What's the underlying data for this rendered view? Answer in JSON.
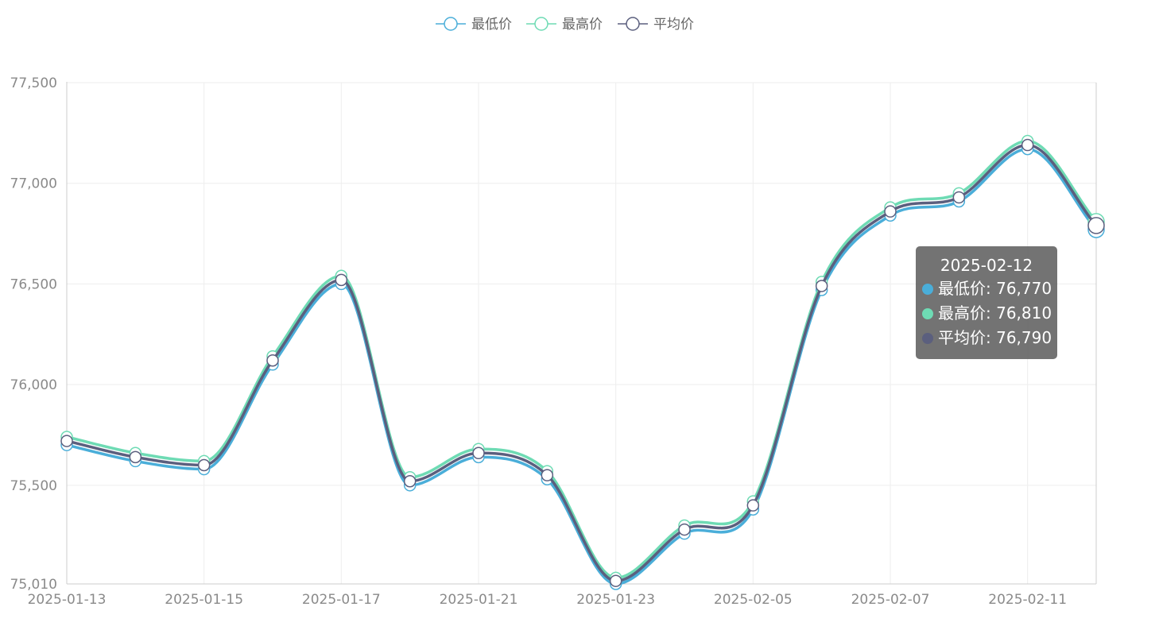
{
  "chart_data": {
    "type": "line",
    "smooth": true,
    "legend_position": "top-center",
    "grid": true,
    "x": [
      "2025-01-13",
      "2025-01-14",
      "2025-01-15",
      "2025-01-16",
      "2025-01-17",
      "2025-01-20",
      "2025-01-21",
      "2025-01-22",
      "2025-01-23",
      "2025-01-24",
      "2025-02-05",
      "2025-02-06",
      "2025-02-07",
      "2025-02-10",
      "2025-02-11",
      "2025-02-12"
    ],
    "x_tick_labels": [
      "2025-01-13",
      "2025-01-15",
      "2025-01-17",
      "2025-01-21",
      "2025-01-23",
      "2025-02-05",
      "2025-02-07",
      "2025-02-11"
    ],
    "x_tick_indices": [
      0,
      2,
      4,
      6,
      8,
      10,
      12,
      14
    ],
    "ylim": [
      75010,
      77500
    ],
    "y_ticks": [
      75010,
      75500,
      76000,
      76500,
      77000,
      77500
    ],
    "y_tick_labels": [
      "75,010",
      "75,500",
      "76,000",
      "76,500",
      "77,000",
      "77,500"
    ],
    "series": [
      {
        "name": "最低价",
        "color": "#4aaed9",
        "values": [
          75700,
          75620,
          75580,
          76100,
          76500,
          75500,
          75640,
          75530,
          75010,
          75260,
          75380,
          76470,
          76840,
          76910,
          77170,
          76770
        ]
      },
      {
        "name": "最高价",
        "color": "#6edbb4",
        "values": [
          75740,
          75660,
          75620,
          76140,
          76540,
          75540,
          75680,
          75570,
          75040,
          75300,
          75420,
          76510,
          76880,
          76950,
          77210,
          76810
        ]
      },
      {
        "name": "平均价",
        "color": "#5b5f7e",
        "values": [
          75720,
          75640,
          75600,
          76120,
          76520,
          75520,
          75660,
          75550,
          75025,
          75280,
          75400,
          76490,
          76860,
          76930,
          77190,
          76790
        ]
      }
    ]
  },
  "tooltip": {
    "title": "2025-02-12",
    "rows": [
      {
        "text": "最低价: 76,770",
        "color": "#4aaed9"
      },
      {
        "text": "最高价: 76,810",
        "color": "#6edbb4"
      },
      {
        "text": "平均价: 76,790",
        "color": "#5b5f7e"
      }
    ]
  }
}
